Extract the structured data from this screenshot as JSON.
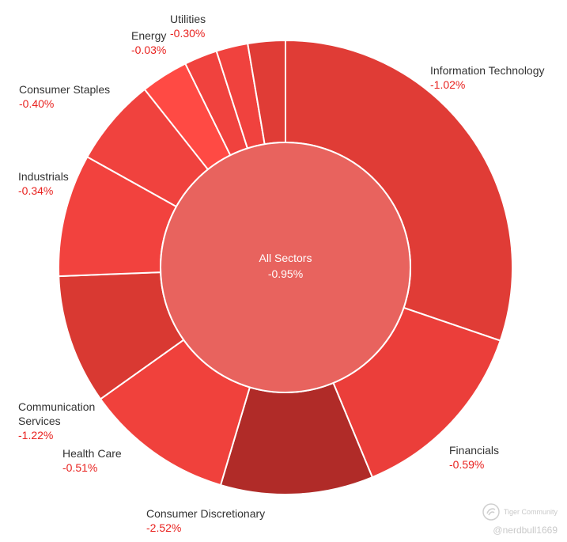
{
  "chart_data": {
    "type": "pie",
    "center": {
      "label": "All Sectors",
      "value": "-0.95%"
    },
    "sectors": [
      {
        "name": "Information Technology",
        "change": "-1.02%",
        "weight": 29.5,
        "color": "#e03c36"
      },
      {
        "name": "Financials",
        "change": "-0.59%",
        "weight": 13.2,
        "color": "#eb3e3a"
      },
      {
        "name": "Consumer Discretionary",
        "change": "-2.52%",
        "weight": 10.6,
        "color": "#b02b28"
      },
      {
        "name": "Health Care",
        "change": "-0.51%",
        "weight": 10.3,
        "color": "#f0413c"
      },
      {
        "name": "Communication Services",
        "change": "-1.22%",
        "weight": 9.0,
        "color": "#d93932"
      },
      {
        "name": "Industrials",
        "change": "-0.34%",
        "weight": 8.5,
        "color": "#f2423e"
      },
      {
        "name": "Consumer Staples",
        "change": "-0.40%",
        "weight": 6.1,
        "color": "#f0423e"
      },
      {
        "name": "Energy",
        "change": "-0.03%",
        "weight": 3.3,
        "color": "#ff4a44"
      },
      {
        "name": "",
        "change": "",
        "weight": 2.3,
        "color": "#f0423e"
      },
      {
        "name": "",
        "change": "",
        "weight": 2.2,
        "color": "#f0423e"
      },
      {
        "name": "Utilities",
        "change": "-0.30%",
        "weight": 2.6,
        "color": "#e03c36"
      }
    ],
    "center_color": "#e8635e"
  },
  "watermark": {
    "brand": "Tiger Community",
    "user": "@nerdbull1669"
  }
}
